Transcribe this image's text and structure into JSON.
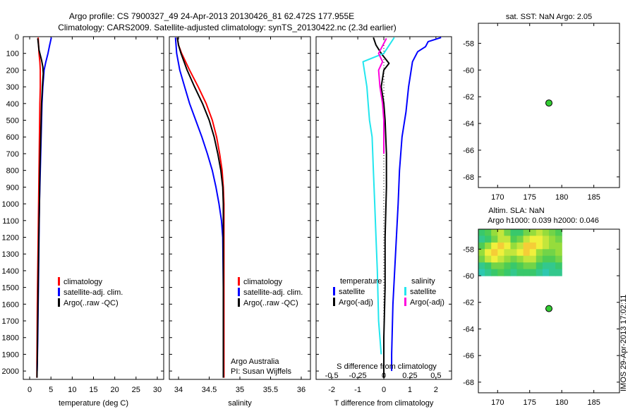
{
  "header": {
    "line1": "Argo profile: CS 7900327_49 24-Apr-2013 20130426_81 62.472S 177.955E",
    "line2": "Climatology: CARS2009. Satellite-adjusted climatology: synTS_20130422.nc (2.3d earlier)"
  },
  "side_stamp": "IMOS 29-Apr-2013 17:02:11",
  "colors": {
    "red": "#ff0000",
    "blue": "#0000ff",
    "black": "#000000",
    "cyan": "#22e6ee",
    "magenta": "#ff00dd",
    "green": "#33cc33"
  },
  "chart_data": [
    {
      "type": "line",
      "title": "",
      "xlabel": "temperature (deg C)",
      "ylabel": "",
      "xlim": [
        -1.5,
        31.5
      ],
      "ylim": [
        2050,
        0
      ],
      "xticks": [
        "0",
        "5",
        "10",
        "15",
        "20",
        "25",
        "30"
      ],
      "yticks": [
        "0",
        "100",
        "200",
        "300",
        "400",
        "500",
        "600",
        "700",
        "800",
        "900",
        "1000",
        "1100",
        "1200",
        "1300",
        "1400",
        "1500",
        "1600",
        "1700",
        "1800",
        "1900",
        "2000"
      ],
      "legend": [
        "climatology",
        "satellite-adj. clim.",
        "Argo(..raw -QC)"
      ],
      "series": [
        {
          "name": "climatology",
          "color": "red",
          "x": [
            2.0,
            2.2,
            2.4,
            2.5,
            2.5,
            2.4,
            2.3,
            2.2,
            2.1,
            2.0,
            1.9,
            1.85,
            1.8,
            1.75,
            1.7,
            1.7
          ],
          "y": [
            5,
            100,
            150,
            200,
            300,
            400,
            600,
            800,
            1000,
            1200,
            1400,
            1500,
            1600,
            1800,
            1950,
            2040
          ]
        },
        {
          "name": "satellite-adj. clim.",
          "color": "blue",
          "x": [
            5.1,
            4.7,
            4.3,
            3.8,
            3.4,
            3.1,
            2.9,
            2.7,
            2.5,
            2.3,
            2.2,
            2.1,
            2.0,
            1.9,
            1.8,
            1.75
          ],
          "y": [
            5,
            50,
            100,
            150,
            200,
            300,
            400,
            600,
            800,
            1000,
            1200,
            1400,
            1600,
            1800,
            1950,
            2000
          ]
        },
        {
          "name": "Argo(..raw -QC)",
          "color": "black",
          "x": [
            1.9,
            2.2,
            2.8,
            3.1,
            3.2,
            3.0,
            2.8,
            2.6,
            2.4,
            2.3,
            2.15,
            2.05,
            1.95,
            1.85,
            1.78,
            1.72
          ],
          "y": [
            10,
            80,
            140,
            180,
            220,
            300,
            400,
            600,
            800,
            1000,
            1200,
            1400,
            1600,
            1800,
            1950,
            2040
          ]
        }
      ]
    },
    {
      "type": "line",
      "title": "",
      "xlabel": "salinity",
      "ylabel": "",
      "xlim": [
        33.85,
        36.15
      ],
      "ylim": [
        2050,
        0
      ],
      "xticks": [
        "34",
        "34.5",
        "35",
        "35.5",
        "36"
      ],
      "legend": [
        "climatology",
        "satellite-adj. clim.",
        "Argo(..raw -QC)"
      ],
      "annotations": [
        "Argo Australia",
        "PI: Susan Wijffels"
      ],
      "series": [
        {
          "name": "climatology",
          "color": "red",
          "x": [
            33.98,
            34.0,
            34.05,
            34.18,
            34.32,
            34.45,
            34.55,
            34.62,
            34.67,
            34.71,
            34.73,
            34.74,
            34.74,
            34.74,
            34.74
          ],
          "y": [
            5,
            50,
            100,
            200,
            300,
            400,
            500,
            600,
            700,
            800,
            900,
            1000,
            1200,
            1600,
            2040
          ]
        },
        {
          "name": "satellite-adj. clim.",
          "color": "blue",
          "x": [
            33.95,
            33.97,
            34.02,
            34.1,
            34.18,
            34.28,
            34.38,
            34.47,
            34.55,
            34.61,
            34.66,
            34.7,
            34.72,
            34.73,
            34.73
          ],
          "y": [
            5,
            100,
            200,
            300,
            400,
            500,
            600,
            700,
            800,
            900,
            1000,
            1100,
            1200,
            1500,
            2000
          ]
        },
        {
          "name": "Argo(..raw -QC)",
          "color": "black",
          "x": [
            33.98,
            34.0,
            34.04,
            34.14,
            34.26,
            34.39,
            34.5,
            34.58,
            34.64,
            34.69,
            34.72,
            34.73,
            34.73,
            34.73
          ],
          "y": [
            5,
            50,
            100,
            200,
            300,
            400,
            500,
            600,
            700,
            800,
            900,
            1000,
            1200,
            2040
          ]
        }
      ]
    },
    {
      "type": "line",
      "title": "",
      "xlabel": "T difference from climatology",
      "xlabel_top": "S difference from climatology",
      "xlim": [
        -2.6,
        2.6
      ],
      "ylim": [
        2050,
        0
      ],
      "xticks_T": [
        "-2",
        "-1",
        "0",
        "1",
        "2"
      ],
      "xticks_S": [
        "-0.5",
        "-0.25",
        "0",
        "0.25",
        "0.5"
      ],
      "legend_left_title": "temperature",
      "legend_right_title": "salinity",
      "legend": [
        "satellite",
        "Argo(-adj)",
        "satellite",
        "Argo(-adj)"
      ],
      "series": [
        {
          "name": "satellite",
          "group": "temperature",
          "color": "blue",
          "x": [
            2.2,
            1.7,
            1.6,
            1.3,
            1.1,
            0.95,
            0.85,
            0.7,
            0.6,
            0.55,
            0.45,
            0.35,
            0.3,
            0.3
          ],
          "y": [
            5,
            30,
            60,
            90,
            150,
            300,
            450,
            600,
            800,
            1000,
            1300,
            1600,
            1900,
            2000
          ]
        },
        {
          "name": "Argo(-adj)",
          "group": "temperature",
          "color": "black",
          "x": [
            -0.4,
            -0.3,
            -0.1,
            0.2,
            0.0,
            -0.1,
            0.0,
            0.05,
            0.1,
            0.1,
            0.05,
            0.05,
            0.0,
            0.0
          ],
          "y": [
            5,
            50,
            100,
            160,
            200,
            300,
            400,
            500,
            700,
            900,
            1200,
            1500,
            1800,
            2040
          ]
        },
        {
          "name": "satellite",
          "group": "salinity",
          "color": "cyan",
          "x": [
            0.4,
            0.0,
            -0.8,
            -0.75,
            -0.65,
            -0.6,
            -0.55,
            -0.45,
            -0.4,
            -0.35,
            -0.3,
            -0.25,
            -0.2,
            -0.1
          ],
          "y": [
            5,
            100,
            150,
            200,
            300,
            400,
            500,
            600,
            800,
            1000,
            1200,
            1400,
            1700,
            1900
          ]
        },
        {
          "name": "Argo(-adj)",
          "group": "salinity",
          "color": "magenta",
          "x": [
            0.1,
            -0.2,
            -0.05,
            -0.2,
            -0.15,
            -0.05,
            0.0,
            0.0,
            0.0
          ],
          "y": [
            10,
            100,
            150,
            200,
            300,
            400,
            500,
            600,
            700
          ]
        }
      ]
    },
    {
      "type": "scatter",
      "title": "sat. SST: NaN Argo: 2.05",
      "xlim": [
        167,
        189
      ],
      "ylim": [
        -68.8,
        -56.5
      ],
      "xticks": [
        "170",
        "175",
        "180",
        "185"
      ],
      "yticks": [
        "-58",
        "-60",
        "-62",
        "-64",
        "-66",
        "-68"
      ],
      "points": [
        {
          "x": 178.0,
          "y": -62.47,
          "color": "green"
        }
      ]
    },
    {
      "type": "heatmap",
      "title": "Altim. SLA: NaN",
      "subtitle": "Argo h1000: 0.039 h2000: 0.046",
      "xlim": [
        167,
        189
      ],
      "ylim": [
        -68.8,
        -56.5
      ],
      "xticks": [
        "170",
        "175",
        "180",
        "185"
      ],
      "yticks": [
        "-58",
        "-60",
        "-62",
        "-64",
        "-66",
        "-68"
      ],
      "grid_extent": {
        "lon": [
          167,
          180
        ],
        "lat": [
          -60,
          -56.5
        ]
      },
      "grid_values": [
        [
          0.3,
          0.4,
          0.6,
          0.7,
          0.5,
          0.3,
          0.3,
          0.5,
          0.6,
          0.7,
          0.6,
          0.5,
          0.4
        ],
        [
          0.2,
          0.3,
          0.5,
          0.7,
          0.7,
          0.4,
          0.5,
          0.7,
          0.8,
          0.8,
          0.7,
          0.6,
          0.5
        ],
        [
          0.4,
          0.6,
          0.8,
          0.9,
          0.8,
          0.6,
          0.7,
          0.9,
          0.9,
          0.8,
          0.7,
          0.6,
          0.6
        ],
        [
          0.6,
          0.8,
          0.9,
          0.8,
          0.7,
          0.7,
          0.8,
          0.9,
          0.8,
          0.6,
          0.5,
          0.5,
          0.6
        ],
        [
          0.5,
          0.7,
          0.8,
          0.7,
          0.6,
          0.5,
          0.6,
          0.7,
          0.7,
          0.5,
          0.4,
          0.4,
          0.5
        ],
        [
          0.2,
          0.3,
          0.5,
          0.5,
          0.4,
          0.3,
          0.4,
          0.5,
          0.5,
          0.3,
          0.2,
          0.2,
          0.3
        ],
        [
          0.1,
          0.2,
          0.3,
          0.4,
          0.3,
          0.2,
          0.3,
          0.3,
          0.3,
          0.2,
          0.1,
          0.2,
          0.2
        ]
      ],
      "points": [
        {
          "x": 178.0,
          "y": -62.47,
          "color": "green"
        }
      ]
    }
  ]
}
